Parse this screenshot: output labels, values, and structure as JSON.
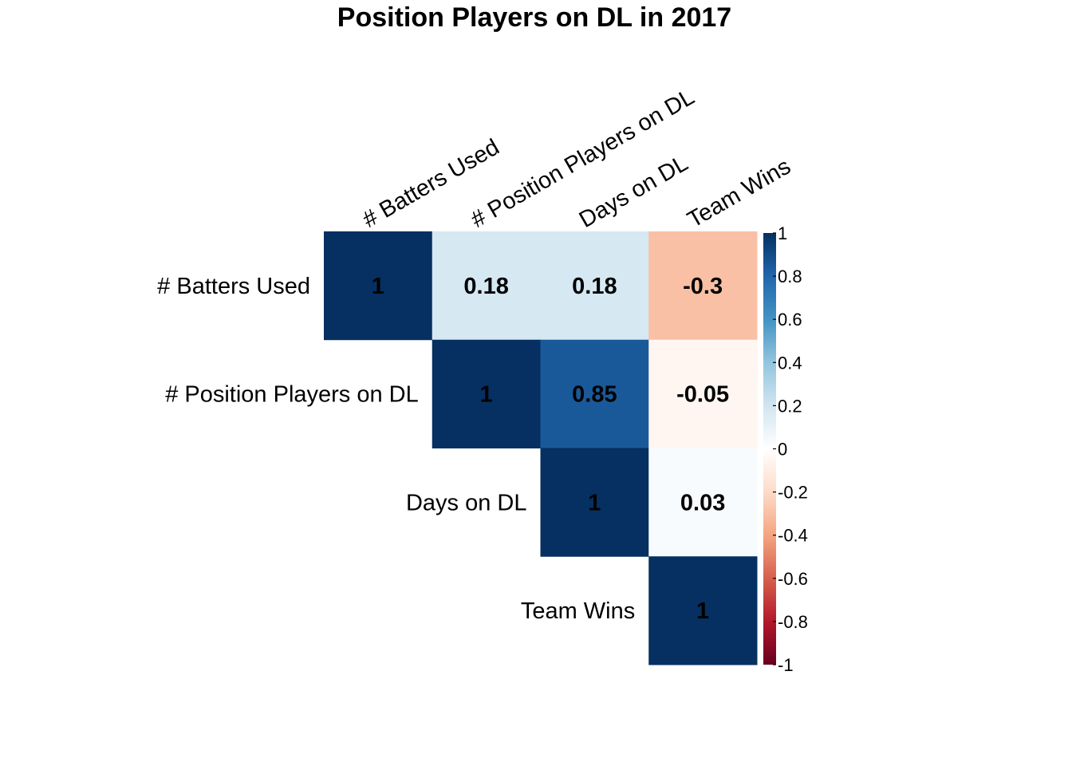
{
  "chart_data": {
    "type": "heatmap",
    "subtype": "correlation-matrix-upper",
    "title": "Position Players on DL in 2017",
    "variables": [
      "# Batters Used",
      "# Position Players on DL",
      "Days on DL",
      "Team Wins"
    ],
    "cells": [
      {
        "row": 0,
        "col": 0,
        "value": 1,
        "label": "1"
      },
      {
        "row": 0,
        "col": 1,
        "value": 0.18,
        "label": "0.18"
      },
      {
        "row": 0,
        "col": 2,
        "value": 0.18,
        "label": "0.18"
      },
      {
        "row": 0,
        "col": 3,
        "value": -0.3,
        "label": "-0.3"
      },
      {
        "row": 1,
        "col": 1,
        "value": 1,
        "label": "1"
      },
      {
        "row": 1,
        "col": 2,
        "value": 0.85,
        "label": "0.85"
      },
      {
        "row": 1,
        "col": 3,
        "value": -0.05,
        "label": "-0.05"
      },
      {
        "row": 2,
        "col": 2,
        "value": 1,
        "label": "1"
      },
      {
        "row": 2,
        "col": 3,
        "value": 0.03,
        "label": "0.03"
      },
      {
        "row": 3,
        "col": 3,
        "value": 1,
        "label": "1"
      }
    ],
    "colorbar": {
      "range": [
        -1,
        1
      ],
      "ticks": [
        {
          "value": 1,
          "label": "1"
        },
        {
          "value": 0.8,
          "label": "0.8"
        },
        {
          "value": 0.6,
          "label": "0.6"
        },
        {
          "value": 0.4,
          "label": "0.4"
        },
        {
          "value": 0.2,
          "label": "0.2"
        },
        {
          "value": 0,
          "label": "0"
        },
        {
          "value": -0.2,
          "label": "-0.2"
        },
        {
          "value": -0.4,
          "label": "-0.4"
        },
        {
          "value": -0.6,
          "label": "-0.6"
        },
        {
          "value": -0.8,
          "label": "-0.8"
        },
        {
          "value": -1,
          "label": "-1"
        }
      ],
      "placement": "right",
      "palette": [
        "#67001F",
        "#B2182B",
        "#D6604D",
        "#F4A582",
        "#FDDBC7",
        "#FFFFFF",
        "#D1E5F0",
        "#92C5DE",
        "#4393C3",
        "#2166AC",
        "#053061"
      ]
    },
    "grid": false
  }
}
